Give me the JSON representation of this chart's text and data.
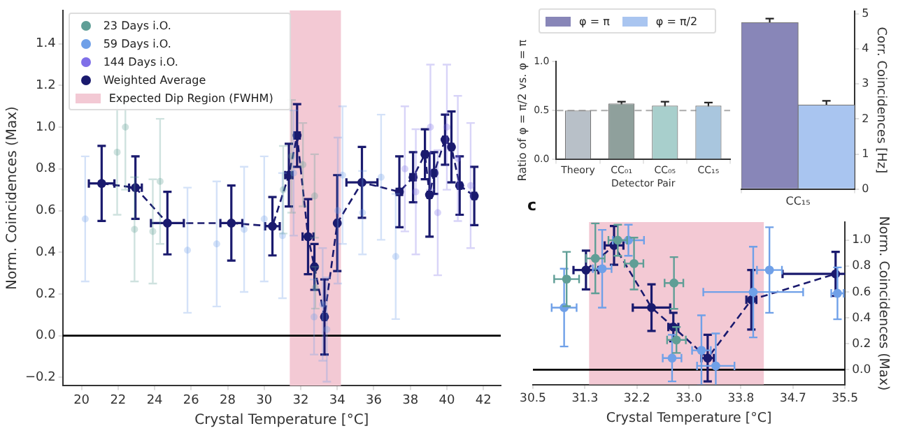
{
  "chart_data": [
    {
      "type": "scatter",
      "xlabel": "Crystal Temperature [°C]",
      "ylabel": "Norm. Coincidences (Max)",
      "xlim": [
        18.97,
        42.95
      ],
      "xticks": [
        20,
        22,
        24,
        26,
        28,
        30,
        32,
        34,
        36,
        38,
        40,
        42
      ],
      "ylim": [
        -0.24,
        1.56
      ],
      "yticks": [
        {
          "value": -0.2,
          "label": "−0.2"
        },
        {
          "value": 0,
          "label": "0.0"
        },
        0.2,
        0.4,
        0.6,
        0.8,
        {
          "value": 1,
          "label": "1.0"
        },
        1.2,
        1.4
      ],
      "grid": false,
      "legend": "top left",
      "marker": "circle",
      "ref_lines": [
        {
          "axis": "y",
          "value": 0,
          "color": "#000000"
        }
      ],
      "bands": [
        {
          "axis": "x",
          "from": 31.4,
          "to": 34.2,
          "label": "Expected Dip Region (FWHM)",
          "color": "#f3c9d4"
        }
      ],
      "series": [
        {
          "name": "23 Days i.O.",
          "color": "#5f9e96",
          "x": [
            21.95,
            22.4,
            22.9,
            23.9,
            24.3,
            31.04,
            31.5,
            32.12,
            32.76,
            32.8
          ],
          "values": [
            0.88,
            1.0,
            0.51,
            0.5,
            0.74,
            0.7,
            0.86,
            0.82,
            0.67,
            0.23
          ],
          "errors": [
            0.3,
            0.3,
            0.25,
            0.25,
            0.3,
            0.21,
            0.27,
            0.2,
            0.2,
            0.1
          ]
        },
        {
          "name": "59 Days i.O.",
          "color": "#6fa0e8",
          "x": [
            20.2,
            25.8,
            27.4,
            28.9,
            30.0,
            31.0,
            31.61,
            32.73,
            33.2,
            33.43,
            34.03,
            34.29,
            35.38,
            36.4,
            37.2
          ],
          "values": [
            0.56,
            0.41,
            0.44,
            0.51,
            0.56,
            0.48,
            0.78,
            0.09,
            0.15,
            0.03,
            0.6,
            0.77,
            0.59,
            0.76,
            0.38
          ],
          "errors": [
            0.3,
            0.3,
            0.3,
            0.3,
            0.3,
            0.3,
            0.3,
            0.18,
            0.27,
            0.25,
            0.35,
            0.33,
            0.2,
            0.3,
            0.3
          ]
        },
        {
          "name": "144 Days i.O.",
          "color": "#7f6fe8",
          "x": [
            37.7,
            38.3,
            39.1,
            39.5,
            40.0,
            40.6,
            41.3
          ],
          "values": [
            0.8,
            0.69,
            1.0,
            0.59,
            1.0,
            0.85,
            0.72
          ],
          "errors": [
            0.3,
            0.3,
            0.3,
            0.3,
            0.3,
            0.3,
            0.3
          ]
        },
        {
          "name": "Weighted Average",
          "color": "#1a1a6e",
          "type": "line",
          "line_style": "dashed",
          "x": [
            21.1,
            22.95,
            24.7,
            28.2,
            30.45,
            31.35,
            31.8,
            32.4,
            32.75,
            33.3,
            34.0,
            35.35,
            37.4,
            38.15,
            38.8,
            39.05,
            39.3,
            39.9,
            40.25,
            40.7,
            41.5
          ],
          "values": [
            0.73,
            0.71,
            0.54,
            0.54,
            0.525,
            0.77,
            0.96,
            0.475,
            0.33,
            0.09,
            0.54,
            0.735,
            0.69,
            0.76,
            0.87,
            0.675,
            0.78,
            0.94,
            0.905,
            0.72,
            0.67
          ],
          "errors": [
            0.18,
            0.15,
            0.15,
            0.18,
            0.14,
            0.15,
            0.15,
            0.18,
            0.11,
            0.18,
            0.23,
            0.17,
            0.17,
            0.12,
            0.12,
            0.2,
            0.1,
            0.12,
            0.17,
            0.14,
            0.14
          ],
          "xerrors": [
            0.7,
            0.35,
            0.9,
            0.6,
            0.4,
            0.2,
            0.15,
            0.3,
            0.08,
            0.1,
            0.08,
            0.85,
            0.15,
            0.15,
            0.1,
            0.1,
            0.1,
            0.1,
            0.1,
            0.1,
            0.1
          ]
        }
      ]
    },
    {
      "type": "bar",
      "categories": [
        "CC₁₅"
      ],
      "y2label": "Corr. Coincidences [Hz]",
      "y2lim": [
        0,
        5.08
      ],
      "y2ticks": [
        0,
        1,
        2,
        3,
        4,
        5
      ],
      "legend": "left",
      "series": [
        {
          "name": "φ = π",
          "color": "#8886b8",
          "values": [
            4.75
          ],
          "errors": [
            0.12
          ],
          "axis": "y2"
        },
        {
          "name": "φ = π/2",
          "color": "#a9c5f0",
          "values": [
            2.4
          ],
          "errors": [
            0.12
          ],
          "axis": "y2"
        }
      ]
    },
    {
      "type": "bar",
      "categories": [
        "Theory",
        "CC₀₁",
        "CC₀₅",
        "CC₁₅"
      ],
      "values": [
        0.5,
        0.57,
        0.55,
        0.55
      ],
      "colors": [
        "#b8c0c8",
        "#8fa09c",
        "#a8cfcc",
        "#a9c6de"
      ],
      "errors": [
        null,
        0.02,
        0.04,
        0.03
      ],
      "xlabel": "Detector Pair",
      "ylabel": "Ratio of φ = π/2 vs. φ = π",
      "ylim": [
        0,
        1
      ],
      "yticks": [
        {
          "value": 0,
          "label": "0.0"
        },
        0.5,
        {
          "value": 1,
          "label": "1.0"
        }
      ],
      "ref_lines": [
        {
          "axis": "y",
          "value": 0.5,
          "color": "#aaaaaa",
          "line_style": "dashed"
        }
      ]
    },
    {
      "type": "scatter",
      "annotations": [
        "c"
      ],
      "xlabel": "Crystal Temperature [°C]",
      "y2label": "Norm. Coincidences (Max)",
      "xlim": [
        30.5,
        35.5
      ],
      "xticks": [
        30.5,
        {
          "value": 31.333,
          "label": "31.3"
        },
        {
          "value": 32.167,
          "label": "32.2"
        },
        {
          "value": 33,
          "label": "33.0"
        },
        {
          "value": 33.833,
          "label": "33.8"
        },
        {
          "value": 34.667,
          "label": "34.7"
        },
        35.5
      ],
      "y2lim": [
        -0.115,
        1.14
      ],
      "y2ticks": [
        {
          "value": 0,
          "label": "0.0"
        },
        0.2,
        0.4,
        0.6,
        0.8,
        {
          "value": 1,
          "label": "1.0"
        }
      ],
      "marker": "circle",
      "ref_lines": [
        {
          "axis": "y2",
          "value": 0,
          "color": "#000000"
        }
      ],
      "bands": [
        {
          "axis": "x",
          "from": 31.4,
          "to": 34.2,
          "color": "#f3c9d4"
        }
      ],
      "series": [
        {
          "color": "#5f9e96",
          "axis": "y2",
          "x": [
            31.04,
            31.5,
            31.86,
            32.12,
            32.76,
            32.8
          ],
          "values": [
            0.7,
            0.86,
            1.0,
            0.82,
            0.67,
            0.23
          ],
          "errors": [
            0.21,
            0.27,
            0.12,
            0.2,
            0.2,
            0.1
          ],
          "xerrors": [
            0.2,
            0.15,
            0.15,
            0.15,
            0.15,
            0.15
          ]
        },
        {
          "color": "#6fa0e8",
          "axis": "y2",
          "x": [
            31.0,
            31.61,
            32.03,
            32.73,
            33.2,
            33.43,
            34.03,
            34.29,
            35.38
          ],
          "values": [
            0.48,
            0.78,
            1.0,
            0.09,
            0.15,
            0.03,
            0.6,
            0.77,
            0.59
          ],
          "errors": [
            0.3,
            0.3,
            0.12,
            0.18,
            0.27,
            0.25,
            0.35,
            0.33,
            0.2
          ],
          "xerrors": [
            0.2,
            0.15,
            0.25,
            0.15,
            0.15,
            0.3,
            0.8,
            0.2,
            0.1
          ]
        },
        {
          "color": "#1a1a6e",
          "axis": "y2",
          "type": "line",
          "line_style": "dashed",
          "x": [
            31.35,
            31.8,
            32.4,
            32.75,
            33.3,
            34.0,
            35.35
          ],
          "values": [
            0.77,
            0.96,
            0.48,
            0.33,
            0.09,
            0.54,
            0.74
          ],
          "errors": [
            0.15,
            0.15,
            0.18,
            0.11,
            0.18,
            0.23,
            0.17
          ],
          "xerrors": [
            0.2,
            0.15,
            0.3,
            0.08,
            0.1,
            0.08,
            0.85
          ]
        }
      ]
    }
  ]
}
